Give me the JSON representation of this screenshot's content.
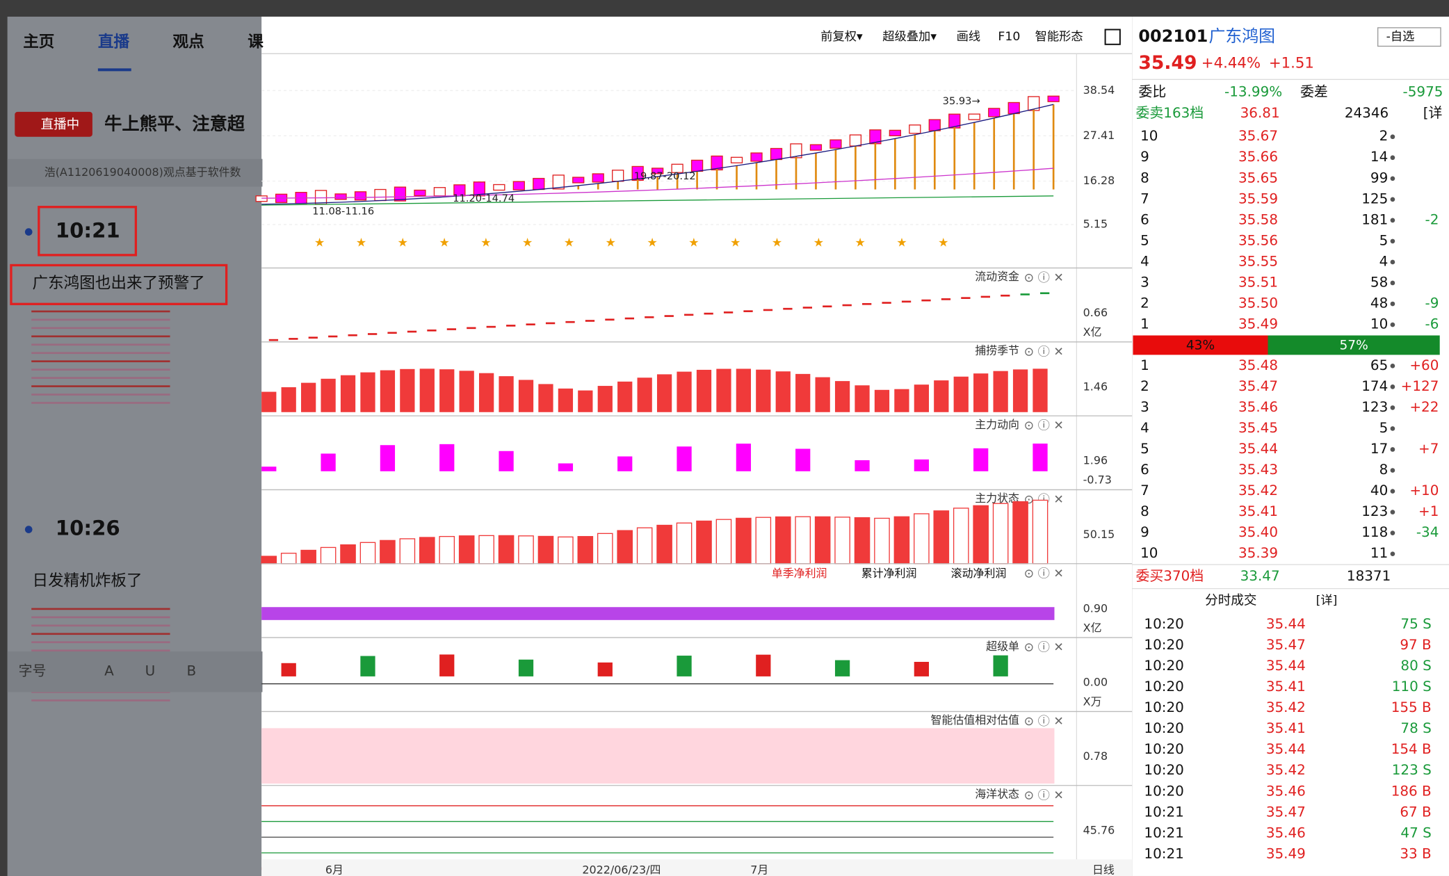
{
  "left": {
    "nav": [
      "主页",
      "直播",
      "观点",
      "课"
    ],
    "live_badge": "直播中",
    "headline": "牛上熊平、注意超",
    "notice": "浩(A1120619040008)观点基于软件数",
    "posts": [
      {
        "time": "10:21",
        "text": "广东鸿图也出来了预警了"
      },
      {
        "time": "10:26",
        "text": "日发精机炸板了"
      }
    ],
    "editor": [
      "字号",
      "A",
      "U",
      "B"
    ]
  },
  "toolbar": [
    "前复权▾",
    "超级叠加▾",
    "画线",
    "F10",
    "智能形态"
  ],
  "main_chart": {
    "axis": [
      "38.54",
      "27.41",
      "16.28",
      "5.15"
    ],
    "annotations": [
      "35.93→",
      "19.87-20.12",
      "11.20-14.74",
      "11.08-11.16"
    ]
  },
  "panels": [
    {
      "title": "流动资金",
      "axis": [
        "0.66",
        "X亿"
      ]
    },
    {
      "title": "捕捞季节",
      "axis": [
        "1.46"
      ]
    },
    {
      "title": "主力动向",
      "axis": [
        "1.96",
        "-0.73"
      ]
    },
    {
      "title": "主力状态",
      "axis": [
        "50.15"
      ]
    },
    {
      "tabs": [
        "单季净利润",
        "累计净利润",
        "滚动净利润"
      ],
      "axis": [
        "0.90",
        "X亿"
      ]
    },
    {
      "title": "超级单",
      "axis": [
        "0.00",
        "X万"
      ]
    },
    {
      "title": "智能估值相对估值",
      "axis": [
        "0.78"
      ]
    },
    {
      "title": "海洋状态",
      "axis": [
        "45.76"
      ]
    }
  ],
  "x_axis": [
    "6月",
    "2022/06/23/四",
    "7月",
    "日线"
  ],
  "quote": {
    "code": "002101",
    "name": "广东鸿图",
    "watch": "-自选",
    "price": "35.49",
    "change_pct": "+4.44%",
    "change": "+1.51",
    "ratio_label": "委比",
    "ratio": "-13.99%",
    "diff_label": "委差",
    "diff": "-5975",
    "sell_header": [
      "委卖163档",
      "36.81",
      "24346",
      "[详"
    ],
    "sells": [
      [
        "10",
        "35.67",
        "2"
      ],
      [
        "9",
        "35.66",
        "14"
      ],
      [
        "8",
        "35.65",
        "99"
      ],
      [
        "7",
        "35.59",
        "125"
      ],
      [
        "6",
        "35.58",
        "181",
        "-2"
      ],
      [
        "5",
        "35.56",
        "5"
      ],
      [
        "4",
        "35.55",
        "4"
      ],
      [
        "3",
        "35.51",
        "58"
      ],
      [
        "2",
        "35.50",
        "48",
        "-9"
      ],
      [
        "1",
        "35.49",
        "10",
        "-6"
      ]
    ],
    "balance": [
      "43%",
      "57%"
    ],
    "buys": [
      [
        "1",
        "35.48",
        "65",
        "+60"
      ],
      [
        "2",
        "35.47",
        "174",
        "+127"
      ],
      [
        "3",
        "35.46",
        "123",
        "+22"
      ],
      [
        "4",
        "35.45",
        "5"
      ],
      [
        "5",
        "35.44",
        "17",
        "+7"
      ],
      [
        "6",
        "35.43",
        "8"
      ],
      [
        "7",
        "35.42",
        "40",
        "+10"
      ],
      [
        "8",
        "35.41",
        "123",
        "+1"
      ],
      [
        "9",
        "35.40",
        "118",
        "-34"
      ],
      [
        "10",
        "35.39",
        "11"
      ]
    ],
    "buy_footer": [
      "委买370档",
      "33.47",
      "18371"
    ],
    "trades_header": [
      "分时成交",
      "[详]"
    ],
    "trades": [
      [
        "10:20",
        "35.44",
        "75 S"
      ],
      [
        "10:20",
        "35.47",
        "97 B"
      ],
      [
        "10:20",
        "35.44",
        "80 S"
      ],
      [
        "10:20",
        "35.41",
        "110 S"
      ],
      [
        "10:20",
        "35.42",
        "155 B"
      ],
      [
        "10:20",
        "35.41",
        "78 S"
      ],
      [
        "10:20",
        "35.44",
        "154 B"
      ],
      [
        "10:20",
        "35.42",
        "123 S"
      ],
      [
        "10:20",
        "35.46",
        "186 B"
      ],
      [
        "10:21",
        "35.47",
        "67 B"
      ],
      [
        "10:21",
        "35.46",
        "47 S"
      ],
      [
        "10:21",
        "35.49",
        "33 B"
      ]
    ]
  }
}
